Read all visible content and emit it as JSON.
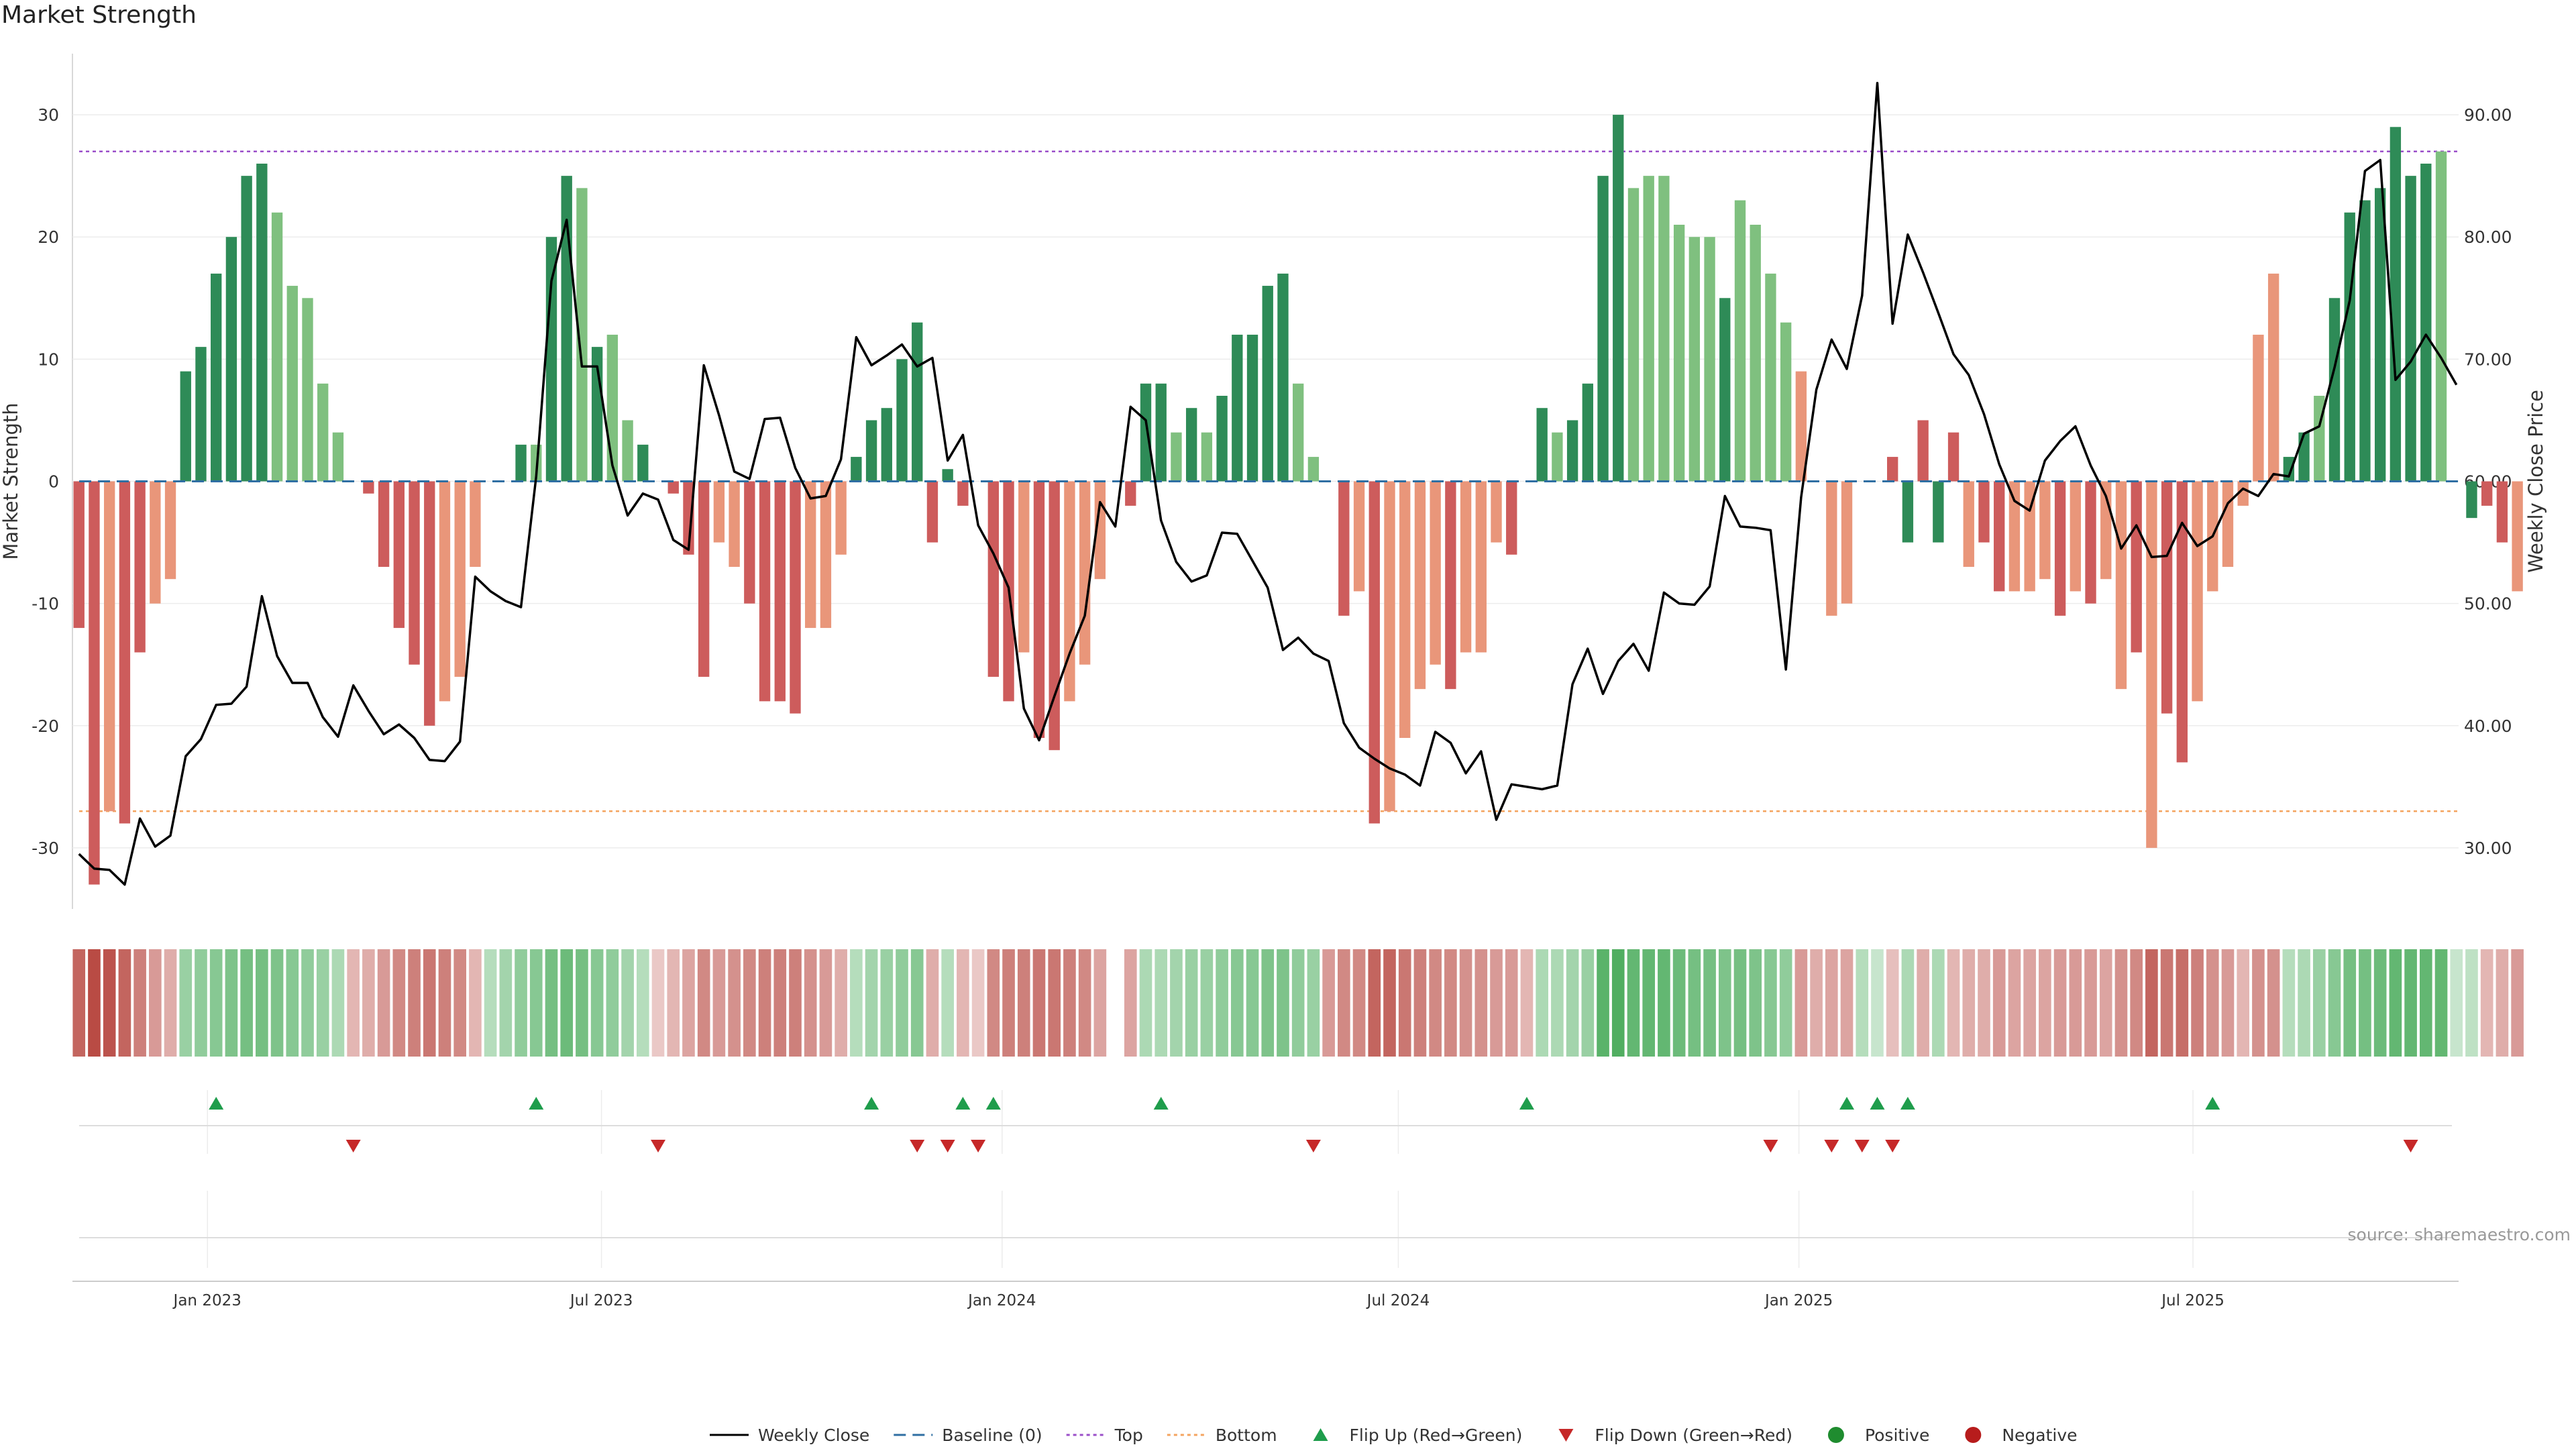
{
  "header": {
    "title": "Market Strength"
  },
  "footer": {
    "source": "source: sharemaestro.com"
  },
  "colors": {
    "strong_green": "#2e8b57",
    "light_green": "#7fc07f",
    "strong_red": "#cd5c5c",
    "light_red": "#e9967a",
    "close_line": "#000000",
    "top_line": "#9b4fc9",
    "bottom_line": "#f4a460",
    "baseline": "#2f6fa3",
    "flip_up": "#1f9d4c",
    "flip_down": "#c62828"
  },
  "chart_data": {
    "type": "bar",
    "title": "Market Strength",
    "ylabel": "Market Strength",
    "y2label": "Weekly Close Price",
    "ylim": [
      -35,
      35
    ],
    "y2lim": [
      25,
      95
    ],
    "yticks": [
      -30,
      -20,
      -10,
      0,
      10,
      20,
      30
    ],
    "y2ticks": [
      "30.00",
      "40.00",
      "50.00",
      "60.00",
      "70.00",
      "80.00",
      "90.00"
    ],
    "xlim": [
      "2022-10-31",
      "2025-10-31"
    ],
    "xticks": [
      {
        "label": "Jan 2023",
        "date": "2023-01-01"
      },
      {
        "label": "Jul 2023",
        "date": "2023-07-01"
      },
      {
        "label": "Jan 2024",
        "date": "2024-01-01"
      },
      {
        "label": "Jul 2024",
        "date": "2024-07-01"
      },
      {
        "label": "Jan 2025",
        "date": "2025-01-01"
      },
      {
        "label": "Jul 2025",
        "date": "2025-07-01"
      }
    ],
    "start_week": "2022-11-03",
    "top_level": 27,
    "bottom_level": -27,
    "strength": [
      -12,
      -33,
      -27,
      -28,
      -14,
      -10,
      -8,
      9,
      11,
      17,
      20,
      25,
      26,
      22,
      16,
      15,
      8,
      4,
      0,
      -1,
      -7,
      -12,
      -15,
      -20,
      -18,
      -16,
      -7,
      0,
      0,
      3,
      3,
      20,
      25,
      24,
      11,
      12,
      5,
      3,
      0,
      -1,
      -6,
      -16,
      -5,
      -7,
      -10,
      -18,
      -18,
      -19,
      -12,
      -12,
      -6,
      2,
      5,
      6,
      10,
      13,
      -5,
      1,
      -2,
      0,
      -16,
      -18,
      -14,
      -21,
      -22,
      -18,
      -15,
      -8,
      0,
      -2,
      8,
      8,
      4,
      6,
      4,
      7,
      12,
      12,
      16,
      17,
      8,
      2,
      0,
      -11,
      -9,
      -28,
      -27,
      -21,
      -17,
      -15,
      -17,
      -14,
      -14,
      -5,
      -6,
      0,
      6,
      4,
      5,
      8,
      25,
      30,
      24,
      25,
      25,
      21,
      20,
      20,
      15,
      23,
      21,
      17,
      13,
      9,
      0,
      -11,
      -10,
      0,
      0,
      2,
      -5,
      5,
      -5,
      4,
      -7,
      -5,
      -9,
      -9,
      -9,
      -8,
      -11,
      -9,
      -10,
      -8,
      -17,
      -14,
      -30,
      -19,
      -23,
      -18,
      -9,
      -7,
      -2,
      12,
      17,
      2,
      4,
      7,
      15,
      22,
      23,
      24,
      29,
      25,
      26,
      27,
      0,
      -3,
      -2,
      -5,
      -9
    ],
    "strength_colors": [
      "sr",
      "sr",
      "lr",
      "sr",
      "sr",
      "lr",
      "lr",
      "sg",
      "sg",
      "sg",
      "sg",
      "sg",
      "sg",
      "lg",
      "lg",
      "lg",
      "lg",
      "lg",
      "lr",
      "sr",
      "sr",
      "sr",
      "sr",
      "sr",
      "lr",
      "lr",
      "lr",
      "lg",
      "lg",
      "sg",
      "lg",
      "sg",
      "sg",
      "lg",
      "sg",
      "lg",
      "lg",
      "sg",
      "lr",
      "sr",
      "sr",
      "sr",
      "lr",
      "lr",
      "sr",
      "sr",
      "sr",
      "sr",
      "lr",
      "lr",
      "lr",
      "sg",
      "sg",
      "sg",
      "sg",
      "sg",
      "sr",
      "sg",
      "sr",
      "lr",
      "sr",
      "sr",
      "lr",
      "sr",
      "sr",
      "lr",
      "lr",
      "lr",
      "lr",
      "sr",
      "sg",
      "sg",
      "lg",
      "sg",
      "lg",
      "sg",
      "sg",
      "sg",
      "sg",
      "sg",
      "lg",
      "lg",
      "lr",
      "sr",
      "lr",
      "sr",
      "lr",
      "lr",
      "lr",
      "lr",
      "sr",
      "lr",
      "lr",
      "lr",
      "sr",
      "lr",
      "sg",
      "lg",
      "sg",
      "sg",
      "sg",
      "sg",
      "lg",
      "lg",
      "lg",
      "lg",
      "lg",
      "lg",
      "sg",
      "lg",
      "lg",
      "lg",
      "lg",
      "lr",
      "sr",
      "lr",
      "lr",
      "lg",
      "sg",
      "sr",
      "sg",
      "sr",
      "sg",
      "sr",
      "lr",
      "sr",
      "sr",
      "lr",
      "lr",
      "lr",
      "sr",
      "lr",
      "sr",
      "lr",
      "lr",
      "sr",
      "lr",
      "sr",
      "sr",
      "lr",
      "lr",
      "lr",
      "lr",
      "lr",
      "lr",
      "sg",
      "sg",
      "lg",
      "sg",
      "sg",
      "sg",
      "sg",
      "sg",
      "sg",
      "sg",
      "lg",
      "lg",
      "sg",
      "sr",
      "sr",
      "lr",
      "sr",
      "sr"
    ],
    "heat_intensity": [
      0.75,
      0.9,
      0.85,
      0.75,
      0.6,
      0.45,
      0.35,
      0.45,
      0.5,
      0.55,
      0.6,
      0.65,
      0.65,
      0.6,
      0.55,
      0.5,
      0.45,
      0.35,
      0.3,
      0.35,
      0.45,
      0.55,
      0.6,
      0.65,
      0.6,
      0.55,
      0.3,
      0.3,
      0.4,
      0.5,
      0.55,
      0.65,
      0.7,
      0.65,
      0.55,
      0.5,
      0.4,
      0.3,
      0.2,
      0.3,
      0.4,
      0.55,
      0.45,
      0.5,
      0.55,
      0.6,
      0.6,
      0.6,
      0.5,
      0.45,
      0.35,
      0.3,
      0.4,
      0.45,
      0.5,
      0.55,
      0.35,
      0.3,
      0.3,
      0.2,
      0.55,
      0.6,
      0.6,
      0.65,
      0.65,
      0.6,
      0.55,
      0.4,
      0.0,
      0.4,
      0.35,
      0.35,
      0.4,
      0.45,
      0.45,
      0.5,
      0.55,
      0.55,
      0.6,
      0.6,
      0.5,
      0.45,
      0.45,
      0.55,
      0.55,
      0.75,
      0.75,
      0.65,
      0.6,
      0.55,
      0.55,
      0.5,
      0.5,
      0.45,
      0.45,
      0.3,
      0.35,
      0.35,
      0.4,
      0.45,
      0.8,
      0.85,
      0.75,
      0.75,
      0.75,
      0.7,
      0.65,
      0.65,
      0.6,
      0.65,
      0.6,
      0.55,
      0.5,
      0.45,
      0.35,
      0.4,
      0.4,
      0.3,
      0.2,
      0.25,
      0.35,
      0.35,
      0.35,
      0.3,
      0.35,
      0.35,
      0.45,
      0.4,
      0.4,
      0.4,
      0.45,
      0.45,
      0.45,
      0.4,
      0.5,
      0.55,
      0.75,
      0.65,
      0.7,
      0.6,
      0.5,
      0.45,
      0.3,
      0.5,
      0.5,
      0.3,
      0.35,
      0.45,
      0.55,
      0.65,
      0.65,
      0.7,
      0.75,
      0.75,
      0.75,
      0.75,
      0.2,
      0.25,
      0.3,
      0.35,
      0.45
    ],
    "weekly_close": [
      29.5,
      28.3,
      28.2,
      27,
      32.4,
      30.1,
      31,
      37.5,
      38.9,
      41.7,
      41.8,
      43.2,
      50.6,
      45.7,
      43.5,
      43.5,
      40.7,
      39.1,
      43.3,
      41.2,
      39.3,
      40.1,
      39,
      37.2,
      37.1,
      38.7,
      52.2,
      51,
      50.2,
      49.7,
      60.4,
      76.4,
      81.4,
      69.4,
      69.4,
      61.3,
      57.2,
      59,
      58.5,
      55.2,
      54.4,
      69.5,
      65.4,
      60.8,
      60.2,
      65.1,
      65.2,
      61.1,
      58.6,
      58.8,
      61.8,
      71.8,
      69.5,
      70.3,
      71.2,
      69.4,
      70.1,
      61.7,
      63.8,
      56.4,
      54.1,
      51.3,
      41.4,
      38.8,
      42.4,
      45.9,
      49,
      58.3,
      56.3,
      66.1,
      65,
      56.8,
      53.4,
      51.8,
      52.3,
      55.8,
      55.7,
      53.5,
      51.3,
      46.2,
      47.2,
      45.9,
      45.3,
      40.2,
      38.2,
      37.3,
      36.5,
      36,
      35.1,
      39.5,
      38.6,
      36.1,
      37.9,
      32.3,
      35.2,
      35,
      34.8,
      35.1,
      43.4,
      46.3,
      42.6,
      45.3,
      46.7,
      44.5,
      50.9,
      50,
      49.9,
      51.4,
      58.8,
      56.3,
      56.2,
      56,
      44.6,
      58.7,
      67.5,
      71.6,
      69.2,
      75.2,
      92.6,
      72.9,
      80.2,
      77.1,
      73.8,
      70.4,
      68.7,
      65.5,
      61.4,
      58.4,
      57.6,
      61.7,
      63.3,
      64.5,
      61.3,
      58.8,
      54.5,
      56.4,
      53.8,
      53.9,
      56.6,
      54.7,
      55.5,
      58.2,
      59.4,
      58.8,
      60.6,
      60.4,
      63.9,
      64.5,
      69.3,
      74.8,
      85.4,
      86.3,
      68.3,
      69.8,
      72,
      70.1,
      67.9
    ],
    "flip_up_weeks": [
      9,
      30,
      52,
      58,
      60,
      71,
      95,
      116,
      118,
      120,
      140
    ],
    "flip_down_weeks": [
      18,
      38,
      55,
      57,
      59,
      81,
      111,
      115,
      117,
      119,
      153
    ],
    "legend": [
      {
        "label": "Weekly Close",
        "kind": "solid-line"
      },
      {
        "label": "Baseline (0)",
        "kind": "dash-line"
      },
      {
        "label": "Top",
        "kind": "dot-line-purple"
      },
      {
        "label": "Bottom",
        "kind": "dot-line-orange"
      },
      {
        "label": "Flip Up (Red→Green)",
        "kind": "tri-up"
      },
      {
        "label": "Flip Down (Green→Red)",
        "kind": "tri-down"
      },
      {
        "label": "Positive",
        "kind": "dot-green"
      },
      {
        "label": "Negative",
        "kind": "dot-red"
      }
    ]
  }
}
